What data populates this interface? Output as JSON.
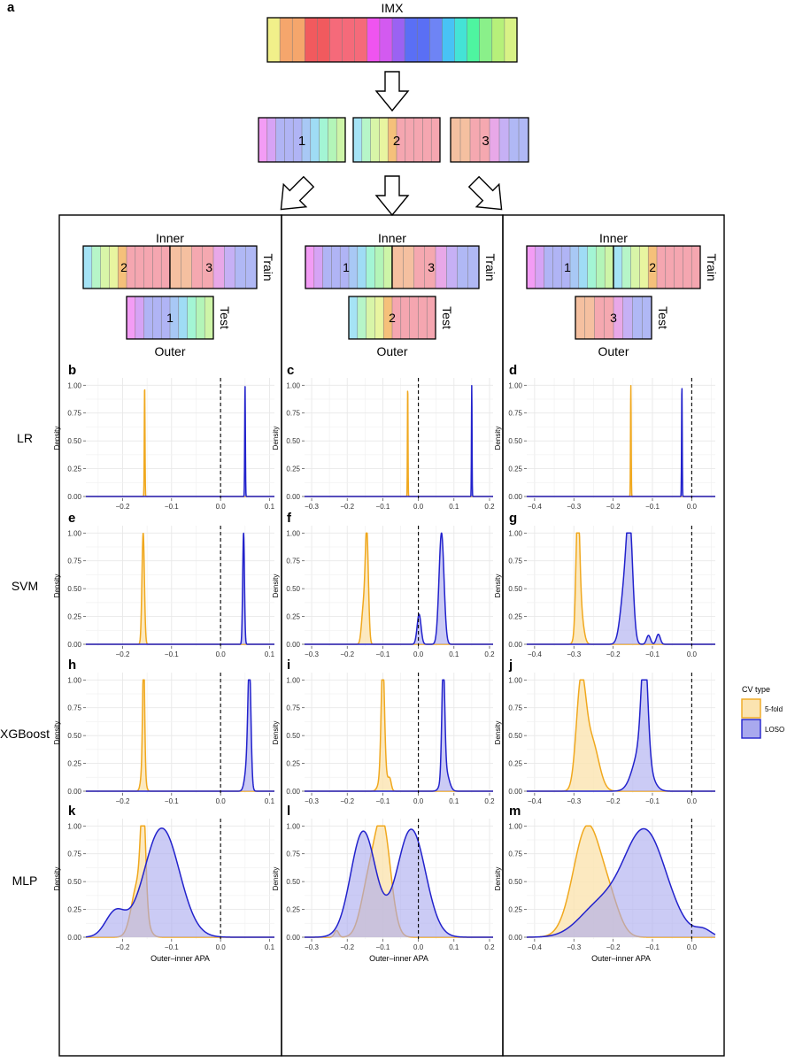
{
  "panel_letters": {
    "a": "a",
    "b": "b",
    "c": "c",
    "d": "d",
    "e": "e",
    "f": "f",
    "g": "g",
    "h": "h",
    "i": "i",
    "j": "j",
    "k": "k",
    "l": "l",
    "m": "m"
  },
  "diagram": {
    "dataset_label": "IMX",
    "fold_labels": [
      "1",
      "2",
      "3"
    ],
    "inner_label": "Inner",
    "outer_label": "Outer",
    "train_label": "Train",
    "test_label": "Test",
    "colors": {
      "strip": [
        "#f1f08a",
        "#f5a66c",
        "#f5a66c",
        "#f15a5e",
        "#f15a5e",
        "#f56a7a",
        "#f56a7a",
        "#f56a7a",
        "#ef54f0",
        "#d35af0",
        "#9b62f2",
        "#5a6ff5",
        "#5a6ff5",
        "#6e84f5",
        "#48c2f5",
        "#44e3d6",
        "#4ef5a0",
        "#8af08a",
        "#b6f07a",
        "#d8f286"
      ],
      "fold1": [
        "#f39cf5",
        "#d6a3f5",
        "#b0b4f5",
        "#b0b4f5",
        "#b0b4f5",
        "#a8c8f5",
        "#9fdcf5",
        "#a3f5d4",
        "#b3f5b8",
        "#cdf5a8"
      ],
      "fold2": [
        "#a5e3f5",
        "#b6f5c8",
        "#d8f5a8",
        "#e8f5a0",
        "#f5c07a",
        "#f5a6b0",
        "#f5a6b0",
        "#f5a6b0",
        "#f5a6b0",
        "#f5a6b0"
      ],
      "fold3": [
        "#f5c0a0",
        "#f5c0a0",
        "#f5a8b0",
        "#f5a8b0",
        "#e8a8e8",
        "#c6b0f5",
        "#b0b8f5",
        "#b0b8f5"
      ]
    }
  },
  "row_labels": [
    "LR",
    "SVM",
    "XGBoost",
    "MLP"
  ],
  "axis": {
    "ylabel": "Density",
    "xlabel": "Outer–inner APA",
    "yticks": [
      "0.00",
      "0.25",
      "0.50",
      "0.75",
      "1.00"
    ],
    "xticks_col1": [
      "−0.2",
      "−0.1",
      "0.0",
      "0.1"
    ],
    "xticks_col2": [
      "−0.3",
      "−0.2",
      "−0.1",
      "0.0",
      "0.1",
      "0.2"
    ],
    "xticks_col3": [
      "−0.4",
      "−0.3",
      "−0.2",
      "−0.1",
      "0.0"
    ]
  },
  "legend": {
    "title": "CV type",
    "entries": [
      "5-fold",
      "LOSO"
    ]
  },
  "colors": {
    "fivefold_line": "#f0a81e",
    "fivefold_fill": "#fbe3b0",
    "loso_line": "#2222cc",
    "loso_fill": "#a9a9ee",
    "grid": "#e8e8e8"
  },
  "chart_data": [
    {
      "panel": "b",
      "model": "LR",
      "type": "area",
      "xlim": [
        -0.275,
        0.11
      ],
      "ylim": [
        0,
        1
      ],
      "series": [
        {
          "name": "5-fold",
          "peaks": [
            {
              "mu": -0.155,
              "sd": 0.0007,
              "h": 1.0
            }
          ]
        },
        {
          "name": "LOSO",
          "peaks": [
            {
              "mu": 0.05,
              "sd": 0.0007,
              "h": 1.0
            }
          ]
        }
      ]
    },
    {
      "panel": "c",
      "model": "LR",
      "type": "area",
      "xlim": [
        -0.32,
        0.21
      ],
      "ylim": [
        0,
        1
      ],
      "series": [
        {
          "name": "5-fold",
          "peaks": [
            {
              "mu": -0.03,
              "sd": 0.0008,
              "h": 1.0
            }
          ]
        },
        {
          "name": "LOSO",
          "peaks": [
            {
              "mu": 0.15,
              "sd": 0.0008,
              "h": 1.0
            }
          ]
        }
      ]
    },
    {
      "panel": "d",
      "model": "LR",
      "type": "area",
      "xlim": [
        -0.42,
        0.06
      ],
      "ylim": [
        0,
        1
      ],
      "series": [
        {
          "name": "5-fold",
          "peaks": [
            {
              "mu": -0.155,
              "sd": 0.0008,
              "h": 1.0
            }
          ]
        },
        {
          "name": "LOSO",
          "peaks": [
            {
              "mu": -0.025,
              "sd": 0.0008,
              "h": 1.0
            }
          ]
        }
      ]
    },
    {
      "panel": "e",
      "model": "SVM",
      "type": "area",
      "xlim": [
        -0.275,
        0.11
      ],
      "ylim": [
        0,
        1
      ],
      "series": [
        {
          "name": "5-fold",
          "peaks": [
            {
              "mu": -0.158,
              "sd": 0.0025,
              "h": 1.0
            }
          ]
        },
        {
          "name": "LOSO",
          "peaks": [
            {
              "mu": 0.047,
              "sd": 0.0018,
              "h": 1.0
            }
          ]
        }
      ]
    },
    {
      "panel": "f",
      "model": "SVM",
      "type": "area",
      "xlim": [
        -0.32,
        0.21
      ],
      "ylim": [
        0,
        1
      ],
      "series": [
        {
          "name": "5-fold",
          "peaks": [
            {
              "mu": -0.145,
              "sd": 0.0045,
              "h": 1.0
            },
            {
              "mu": -0.155,
              "sd": 0.005,
              "h": 0.3
            }
          ]
        },
        {
          "name": "LOSO",
          "peaks": [
            {
              "mu": 0.065,
              "sd": 0.007,
              "h": 1.0
            },
            {
              "mu": 0.002,
              "sd": 0.0055,
              "h": 0.27
            }
          ]
        }
      ]
    },
    {
      "panel": "g",
      "model": "SVM",
      "type": "area",
      "xlim": [
        -0.42,
        0.06
      ],
      "ylim": [
        0,
        1
      ],
      "series": [
        {
          "name": "5-fold",
          "peaks": [
            {
              "mu": -0.29,
              "sd": 0.0045,
              "h": 1.0
            },
            {
              "mu": -0.285,
              "sd": 0.008,
              "h": 0.35
            }
          ]
        },
        {
          "name": "LOSO",
          "peaks": [
            {
              "mu": -0.158,
              "sd": 0.008,
              "h": 1.0
            },
            {
              "mu": -0.172,
              "sd": 0.01,
              "h": 0.45
            },
            {
              "mu": -0.11,
              "sd": 0.005,
              "h": 0.08
            },
            {
              "mu": -0.085,
              "sd": 0.005,
              "h": 0.09
            }
          ]
        }
      ]
    },
    {
      "panel": "h",
      "model": "XGBoost",
      "type": "area",
      "xlim": [
        -0.275,
        0.11
      ],
      "ylim": [
        0,
        1
      ],
      "series": [
        {
          "name": "5-fold",
          "peaks": [
            {
              "mu": -0.157,
              "sd": 0.002,
              "h": 1.0
            },
            {
              "mu": -0.158,
              "sd": 0.004,
              "h": 0.25
            }
          ]
        },
        {
          "name": "LOSO",
          "peaks": [
            {
              "mu": 0.059,
              "sd": 0.003,
              "h": 1.0
            },
            {
              "mu": 0.055,
              "sd": 0.005,
              "h": 0.25
            }
          ]
        }
      ]
    },
    {
      "panel": "i",
      "model": "XGBoost",
      "type": "area",
      "xlim": [
        -0.32,
        0.21
      ],
      "ylim": [
        0,
        1
      ],
      "series": [
        {
          "name": "5-fold",
          "peaks": [
            {
              "mu": -0.1,
              "sd": 0.0045,
              "h": 1.0
            },
            {
              "mu": -0.098,
              "sd": 0.01,
              "h": 0.2
            },
            {
              "mu": -0.08,
              "sd": 0.004,
              "h": 0.08
            }
          ]
        },
        {
          "name": "LOSO",
          "peaks": [
            {
              "mu": 0.07,
              "sd": 0.004,
              "h": 1.0
            },
            {
              "mu": 0.075,
              "sd": 0.01,
              "h": 0.2
            }
          ]
        }
      ]
    },
    {
      "panel": "j",
      "model": "XGBoost",
      "type": "area",
      "xlim": [
        -0.42,
        0.06
      ],
      "ylim": [
        0,
        1
      ],
      "series": [
        {
          "name": "5-fold",
          "peaks": [
            {
              "mu": -0.282,
              "sd": 0.012,
              "h": 0.9
            },
            {
              "mu": -0.255,
              "sd": 0.018,
              "h": 0.45
            }
          ]
        },
        {
          "name": "LOSO",
          "peaks": [
            {
              "mu": -0.12,
              "sd": 0.008,
              "h": 0.95
            },
            {
              "mu": -0.128,
              "sd": 0.02,
              "h": 0.4
            }
          ]
        }
      ]
    },
    {
      "panel": "k",
      "model": "MLP",
      "type": "area",
      "xlim": [
        -0.275,
        0.11
      ],
      "ylim": [
        0,
        1
      ],
      "series": [
        {
          "name": "5-fold",
          "peaks": [
            {
              "mu": -0.158,
              "sd": 0.005,
              "h": 0.9
            },
            {
              "mu": -0.168,
              "sd": 0.013,
              "h": 0.5
            }
          ]
        },
        {
          "name": "LOSO",
          "peaks": [
            {
              "mu": -0.12,
              "sd": 0.036,
              "h": 0.98
            },
            {
              "mu": -0.215,
              "sd": 0.02,
              "h": 0.22
            }
          ]
        }
      ]
    },
    {
      "panel": "l",
      "model": "MLP",
      "type": "area",
      "xlim": [
        -0.32,
        0.21
      ],
      "ylim": [
        0,
        1
      ],
      "series": [
        {
          "name": "5-fold",
          "peaks": [
            {
              "mu": -0.1,
              "sd": 0.022,
              "h": 0.98
            },
            {
              "mu": -0.14,
              "sd": 0.022,
              "h": 0.45
            },
            {
              "mu": -0.23,
              "sd": 0.006,
              "h": 0.06
            }
          ]
        },
        {
          "name": "LOSO",
          "peaks": [
            {
              "mu": -0.155,
              "sd": 0.035,
              "h": 0.95
            },
            {
              "mu": -0.02,
              "sd": 0.04,
              "h": 0.97
            }
          ]
        }
      ]
    },
    {
      "panel": "m",
      "model": "MLP",
      "type": "area",
      "xlim": [
        -0.42,
        0.06
      ],
      "ylim": [
        0,
        1
      ],
      "series": [
        {
          "name": "5-fold",
          "peaks": [
            {
              "mu": -0.265,
              "sd": 0.036,
              "h": 1.0
            },
            {
              "mu": -0.205,
              "sd": 0.025,
              "h": 0.2
            }
          ]
        },
        {
          "name": "LOSO",
          "peaks": [
            {
              "mu": -0.12,
              "sd": 0.055,
              "h": 0.96
            },
            {
              "mu": -0.24,
              "sd": 0.05,
              "h": 0.25
            },
            {
              "mu": 0.03,
              "sd": 0.02,
              "h": 0.06
            }
          ]
        }
      ]
    }
  ]
}
